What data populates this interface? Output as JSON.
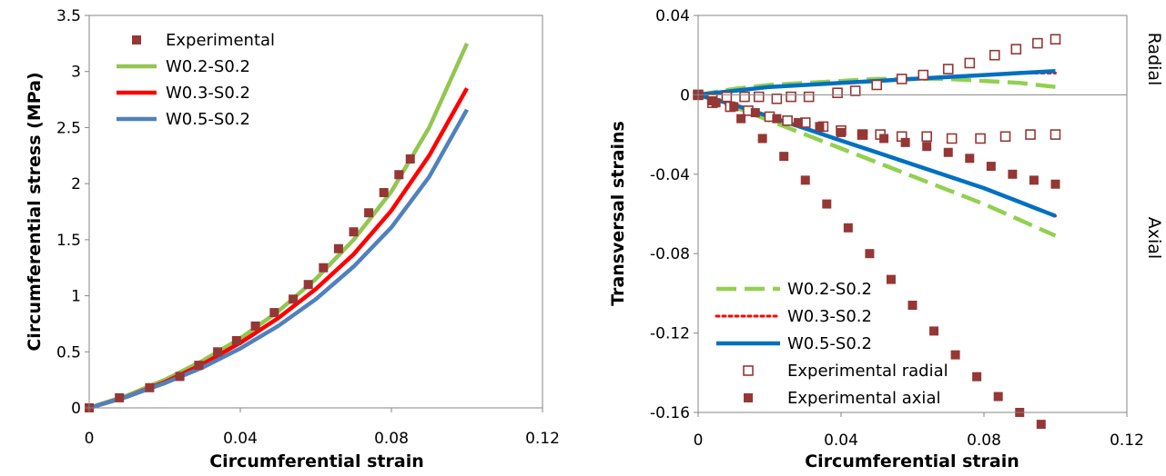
{
  "chart_data": [
    {
      "type": "scatter",
      "xlabel": "Circumferential strain",
      "ylabel": "Circumferential stress (MPa)",
      "xlim": [
        0,
        0.12
      ],
      "ylim": [
        0,
        3.5
      ],
      "xticks": [
        0,
        0.04,
        0.08,
        0.12
      ],
      "xtick_labels": [
        "0",
        "0.04",
        "0.08",
        "0.12"
      ],
      "yticks": [
        0,
        0.5,
        1,
        1.5,
        2,
        2.5,
        3,
        3.5
      ],
      "ytick_labels": [
        "0",
        "0.5",
        "1",
        "1.5",
        "2",
        "2.5",
        "3",
        "3.5"
      ],
      "grid": false,
      "legend_position": "top-left",
      "series": [
        {
          "name": "Experimental",
          "kind": "marker-filled",
          "color": "#953735",
          "points": [
            [
              0,
              0
            ],
            [
              0.008,
              0.09
            ],
            [
              0.016,
              0.18
            ],
            [
              0.024,
              0.28
            ],
            [
              0.029,
              0.38
            ],
            [
              0.034,
              0.5
            ],
            [
              0.039,
              0.6
            ],
            [
              0.044,
              0.73
            ],
            [
              0.049,
              0.85
            ],
            [
              0.054,
              0.97
            ],
            [
              0.058,
              1.1
            ],
            [
              0.062,
              1.25
            ],
            [
              0.066,
              1.42
            ],
            [
              0.07,
              1.57
            ],
            [
              0.074,
              1.74
            ],
            [
              0.078,
              1.92
            ],
            [
              0.082,
              2.08
            ],
            [
              0.085,
              2.22
            ]
          ]
        },
        {
          "name": "W0.2-S0.2",
          "kind": "line-solid",
          "color": "#92C651",
          "points": [
            [
              0,
              0
            ],
            [
              0.01,
              0.11
            ],
            [
              0.02,
              0.25
            ],
            [
              0.03,
              0.42
            ],
            [
              0.04,
              0.62
            ],
            [
              0.05,
              0.86
            ],
            [
              0.06,
              1.15
            ],
            [
              0.07,
              1.5
            ],
            [
              0.08,
              1.93
            ],
            [
              0.09,
              2.5
            ],
            [
              0.1,
              3.25
            ]
          ]
        },
        {
          "name": "W0.3-S0.2",
          "kind": "line-solid",
          "color": "#FF0000",
          "points": [
            [
              0,
              0
            ],
            [
              0.01,
              0.1
            ],
            [
              0.02,
              0.23
            ],
            [
              0.03,
              0.39
            ],
            [
              0.04,
              0.58
            ],
            [
              0.05,
              0.8
            ],
            [
              0.06,
              1.06
            ],
            [
              0.07,
              1.37
            ],
            [
              0.08,
              1.76
            ],
            [
              0.09,
              2.25
            ],
            [
              0.1,
              2.85
            ]
          ]
        },
        {
          "name": "W0.5-S0.2",
          "kind": "line-solid",
          "color": "#4F81BD",
          "points": [
            [
              0,
              0
            ],
            [
              0.01,
              0.1
            ],
            [
              0.02,
              0.22
            ],
            [
              0.03,
              0.36
            ],
            [
              0.04,
              0.53
            ],
            [
              0.05,
              0.73
            ],
            [
              0.06,
              0.97
            ],
            [
              0.07,
              1.26
            ],
            [
              0.08,
              1.61
            ],
            [
              0.09,
              2.06
            ],
            [
              0.1,
              2.66
            ]
          ]
        }
      ]
    },
    {
      "type": "scatter",
      "xlabel": "Circumferential strain",
      "ylabel": "Transversal strains",
      "xlim": [
        0,
        0.12
      ],
      "ylim": [
        -0.16,
        0.04
      ],
      "xticks": [
        0,
        0.04,
        0.08,
        0.12
      ],
      "xtick_labels": [
        "0",
        "0.04",
        "0.08",
        "0.12"
      ],
      "yticks": [
        -0.16,
        -0.12,
        -0.08,
        -0.04,
        0,
        0.04
      ],
      "ytick_labels": [
        "-0.16",
        "-0.12",
        "-0.08",
        "-0.04",
        "0",
        "0.04"
      ],
      "grid": false,
      "legend_position": "bottom-left",
      "side_labels": [
        "Radial",
        "Axial"
      ],
      "series": [
        {
          "name": "W0.2-S0.2",
          "kind": "line-dashed",
          "color": "#92D050",
          "points": [
            [
              0,
              0
            ],
            [
              0.01,
              0.003
            ],
            [
              0.02,
              0.005
            ],
            [
              0.03,
              0.006
            ],
            [
              0.04,
              0.007
            ],
            [
              0.05,
              0.008
            ],
            [
              0.06,
              0.008
            ],
            [
              0.07,
              0.008
            ],
            [
              0.08,
              0.007
            ],
            [
              0.09,
              0.006
            ],
            [
              0.1,
              0.004
            ]
          ]
        },
        {
          "name": "W0.3-S0.2",
          "kind": "line-dotted",
          "color": "#FF0000",
          "points": [
            [
              0,
              0
            ],
            [
              0.01,
              0.002
            ],
            [
              0.02,
              0.004
            ],
            [
              0.03,
              0.005
            ],
            [
              0.04,
              0.006
            ],
            [
              0.05,
              0.007
            ],
            [
              0.06,
              0.008
            ],
            [
              0.07,
              0.009
            ],
            [
              0.08,
              0.01
            ],
            [
              0.09,
              0.011
            ],
            [
              0.1,
              0.011
            ]
          ]
        },
        {
          "name": "W0.5-S0.2",
          "kind": "line-solid",
          "color": "#0070C0",
          "points": [
            [
              0,
              0
            ],
            [
              0.01,
              0.002
            ],
            [
              0.02,
              0.004
            ],
            [
              0.03,
              0.005
            ],
            [
              0.04,
              0.006
            ],
            [
              0.05,
              0.007
            ],
            [
              0.06,
              0.008
            ],
            [
              0.07,
              0.009
            ],
            [
              0.08,
              0.01
            ],
            [
              0.09,
              0.011
            ],
            [
              0.1,
              0.012
            ]
          ]
        },
        {
          "name": "W0.2-S0.2",
          "kind": "line-dashed",
          "color": "#92D050",
          "points": [
            [
              0,
              0
            ],
            [
              0.01,
              -0.006
            ],
            [
              0.02,
              -0.013
            ],
            [
              0.03,
              -0.02
            ],
            [
              0.04,
              -0.027
            ],
            [
              0.05,
              -0.034
            ],
            [
              0.06,
              -0.041
            ],
            [
              0.07,
              -0.048
            ],
            [
              0.08,
              -0.055
            ],
            [
              0.09,
              -0.063
            ],
            [
              0.1,
              -0.071
            ]
          ]
        },
        {
          "name": "W0.3-S0.2",
          "kind": "line-dotted",
          "color": "#FF0000",
          "points": [
            [
              0,
              0
            ],
            [
              0.01,
              -0.005
            ],
            [
              0.02,
              -0.011
            ],
            [
              0.03,
              -0.017
            ],
            [
              0.04,
              -0.023
            ],
            [
              0.05,
              -0.029
            ],
            [
              0.06,
              -0.035
            ],
            [
              0.07,
              -0.041
            ],
            [
              0.08,
              -0.047
            ],
            [
              0.09,
              -0.054
            ],
            [
              0.1,
              -0.061
            ]
          ]
        },
        {
          "name": "W0.5-S0.2",
          "kind": "line-solid",
          "color": "#0070C0",
          "points": [
            [
              0,
              0
            ],
            [
              0.01,
              -0.005
            ],
            [
              0.02,
              -0.011
            ],
            [
              0.03,
              -0.017
            ],
            [
              0.04,
              -0.023
            ],
            [
              0.05,
              -0.029
            ],
            [
              0.06,
              -0.035
            ],
            [
              0.07,
              -0.041
            ],
            [
              0.08,
              -0.047
            ],
            [
              0.09,
              -0.054
            ],
            [
              0.1,
              -0.061
            ]
          ]
        },
        {
          "name": "Experimental radial",
          "kind": "marker-hollow",
          "color": "#953735",
          "points": [
            [
              0,
              0
            ],
            [
              0.004,
              -0.002
            ],
            [
              0.008,
              -0.001
            ],
            [
              0.013,
              -0.001
            ],
            [
              0.017,
              -0.001
            ],
            [
              0.022,
              -0.002
            ],
            [
              0.026,
              -0.001
            ],
            [
              0.031,
              -0.001
            ],
            [
              0.039,
              0.001
            ],
            [
              0.044,
              0.002
            ],
            [
              0.05,
              0.005
            ],
            [
              0.057,
              0.008
            ],
            [
              0.063,
              0.01
            ],
            [
              0.07,
              0.013
            ],
            [
              0.076,
              0.016
            ],
            [
              0.083,
              0.02
            ],
            [
              0.089,
              0.023
            ],
            [
              0.095,
              0.026
            ],
            [
              0.1,
              0.028
            ],
            [
              0.004,
              -0.004
            ],
            [
              0.009,
              -0.006
            ],
            [
              0.014,
              -0.008
            ],
            [
              0.02,
              -0.011
            ],
            [
              0.025,
              -0.013
            ],
            [
              0.03,
              -0.014
            ],
            [
              0.035,
              -0.016
            ],
            [
              0.04,
              -0.018
            ],
            [
              0.046,
              -0.02
            ],
            [
              0.051,
              -0.02
            ],
            [
              0.057,
              -0.021
            ],
            [
              0.064,
              -0.021
            ],
            [
              0.071,
              -0.022
            ],
            [
              0.079,
              -0.022
            ],
            [
              0.086,
              -0.021
            ],
            [
              0.093,
              -0.02
            ],
            [
              0.1,
              -0.02
            ]
          ]
        },
        {
          "name": "Experimental axial",
          "kind": "marker-filled",
          "color": "#953735",
          "points": [
            [
              0,
              0
            ],
            [
              0.005,
              -0.004
            ],
            [
              0.012,
              -0.012
            ],
            [
              0.018,
              -0.022
            ],
            [
              0.024,
              -0.031
            ],
            [
              0.03,
              -0.043
            ],
            [
              0.036,
              -0.055
            ],
            [
              0.042,
              -0.067
            ],
            [
              0.048,
              -0.08
            ],
            [
              0.054,
              -0.093
            ],
            [
              0.06,
              -0.106
            ],
            [
              0.066,
              -0.119
            ],
            [
              0.072,
              -0.131
            ],
            [
              0.078,
              -0.142
            ],
            [
              0.084,
              -0.152
            ],
            [
              0.09,
              -0.16
            ],
            [
              0.096,
              -0.166
            ],
            [
              0.004,
              -0.003
            ],
            [
              0.01,
              -0.006
            ],
            [
              0.016,
              -0.009
            ],
            [
              0.022,
              -0.012
            ],
            [
              0.028,
              -0.014
            ],
            [
              0.034,
              -0.016
            ],
            [
              0.04,
              -0.019
            ],
            [
              0.046,
              -0.02
            ],
            [
              0.052,
              -0.022
            ],
            [
              0.058,
              -0.024
            ],
            [
              0.064,
              -0.026
            ],
            [
              0.07,
              -0.029
            ],
            [
              0.076,
              -0.032
            ],
            [
              0.082,
              -0.036
            ],
            [
              0.088,
              -0.04
            ],
            [
              0.094,
              -0.043
            ],
            [
              0.1,
              -0.045
            ]
          ]
        }
      ]
    }
  ]
}
